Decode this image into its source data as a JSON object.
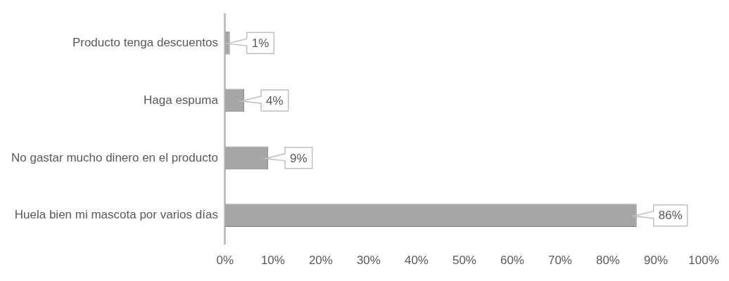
{
  "chart_data": {
    "type": "bar",
    "orientation": "horizontal",
    "categories": [
      "Producto tenga descuentos",
      "Haga espuma",
      "No gastar mucho dinero en el producto",
      "Huela bien mi mascota por varios días"
    ],
    "values": [
      1,
      4,
      9,
      86
    ],
    "color": "#a6a6a6",
    "value_labels": [
      "1%",
      "4%",
      "9%",
      "86%"
    ],
    "xlim": [
      0,
      100
    ],
    "xticks": [
      {
        "value": 0,
        "label": "0%"
      },
      {
        "value": 10,
        "label": "10%"
      },
      {
        "value": 20,
        "label": "20%"
      },
      {
        "value": 30,
        "label": "30%"
      },
      {
        "value": 40,
        "label": "40%"
      },
      {
        "value": 50,
        "label": "50%"
      },
      {
        "value": 60,
        "label": "60%"
      },
      {
        "value": 70,
        "label": "70%"
      },
      {
        "value": 80,
        "label": "80%"
      },
      {
        "value": 90,
        "label": "90%"
      },
      {
        "value": 100,
        "label": "100%"
      }
    ],
    "grid": false,
    "legend": false
  }
}
